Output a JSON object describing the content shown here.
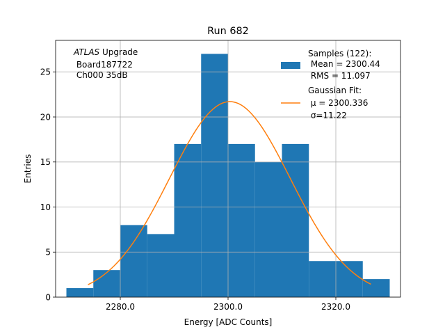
{
  "chart_data": {
    "type": "bar",
    "title": "Run 682",
    "xlabel": "Energy [ADC Counts]",
    "ylabel": "Entries",
    "xlim": [
      2268,
      2332
    ],
    "ylim": [
      0,
      28.5
    ],
    "grid": true,
    "x_ticks": [
      2280,
      2300,
      2320
    ],
    "x_tick_labels": [
      "2280.0",
      "2300.0",
      "2320.0"
    ],
    "y_ticks": [
      0,
      5,
      10,
      15,
      20,
      25
    ],
    "y_tick_labels": [
      "0",
      "5",
      "10",
      "15",
      "20",
      "25"
    ],
    "bar_color": "#1f77b4",
    "fit_color": "#ff7f0e",
    "histogram": {
      "bin_edges": [
        2270,
        2275,
        2280,
        2285,
        2290,
        2295,
        2300,
        2305,
        2310,
        2315,
        2320,
        2325,
        2330
      ],
      "counts": [
        1,
        3,
        8,
        7,
        17,
        27,
        17,
        15,
        17,
        4,
        4,
        2
      ]
    },
    "gaussian_fit": {
      "mu": 2300.336,
      "sigma": 11.22,
      "amplitude": 21.7,
      "x_range": [
        2274,
        2326.5
      ]
    },
    "annotation": {
      "italic": "ATLAS",
      "line1_rest": " Upgrade",
      "line2": " Board187722",
      "line3": " Ch000 35dB"
    },
    "legend": {
      "placement": "top-right",
      "hist_lines": [
        "Samples (122):",
        " Mean = 2300.44",
        " RMS = 11.097"
      ],
      "fit_lines": [
        "Gaussian Fit:",
        " μ = 2300.336",
        " σ=11.22"
      ]
    }
  }
}
